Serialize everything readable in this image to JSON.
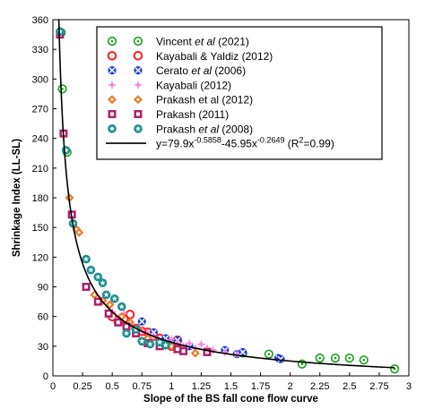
{
  "chart_data": {
    "type": "scatter",
    "xlabel": "Slope of the BS fall cone flow curve",
    "ylabel": "Shrinkage Index (LL-SL)",
    "xlim": [
      0,
      3
    ],
    "ylim": [
      0,
      360
    ],
    "xticks": [
      "0",
      "0.25",
      "0.5",
      "0.75",
      "1",
      "1.25",
      "1.5",
      "1.75",
      "2",
      "2.25",
      "2.5",
      "2.75",
      "3"
    ],
    "yticks": [
      "0",
      "30",
      "60",
      "90",
      "120",
      "150",
      "180",
      "210",
      "240",
      "270",
      "300",
      "330",
      "360"
    ],
    "grid": false,
    "legend_position": "top-right",
    "series": [
      {
        "name_parts": [
          {
            "t": "Vincent "
          },
          {
            "t": "et al",
            "i": true
          },
          {
            "t": " (2021)"
          }
        ],
        "marker": "circle-dot",
        "color": "#1aa01a",
        "points": [
          [
            0.07,
            347
          ],
          [
            0.08,
            290
          ],
          [
            0.12,
            226
          ],
          [
            1.6,
            23
          ],
          [
            1.82,
            22
          ],
          [
            2.1,
            12
          ],
          [
            2.25,
            18
          ],
          [
            2.38,
            18
          ],
          [
            2.5,
            18
          ],
          [
            2.62,
            16
          ],
          [
            2.88,
            7
          ]
        ]
      },
      {
        "name_parts": [
          {
            "t": "Kayabali & Yaldiz (2012)"
          }
        ],
        "marker": "circle-open",
        "color": "#ff2020",
        "points": [
          [
            0.5,
            60
          ],
          [
            0.55,
            55
          ],
          [
            0.6,
            58
          ],
          [
            0.65,
            62
          ],
          [
            0.7,
            48
          ],
          [
            0.75,
            45
          ],
          [
            0.8,
            44
          ],
          [
            0.85,
            40
          ],
          [
            0.9,
            38
          ],
          [
            0.95,
            33
          ],
          [
            1.0,
            30
          ],
          [
            1.05,
            36
          ]
        ]
      },
      {
        "name_parts": [
          {
            "t": "Cerato "
          },
          {
            "t": "et al",
            "i": true
          },
          {
            "t": " (2006)"
          }
        ],
        "marker": "circle-x",
        "color": "#2040d0",
        "points": [
          [
            0.75,
            55
          ],
          [
            0.85,
            44
          ],
          [
            0.95,
            38
          ],
          [
            1.0,
            33
          ],
          [
            1.05,
            36
          ],
          [
            1.15,
            30
          ],
          [
            1.45,
            26
          ],
          [
            1.55,
            22
          ],
          [
            1.6,
            24
          ],
          [
            1.9,
            18
          ],
          [
            1.92,
            17
          ]
        ]
      },
      {
        "name_parts": [
          {
            "t": "Kayabali (2012)"
          }
        ],
        "marker": "star4",
        "color": "#ff80e0",
        "points": [
          [
            0.4,
            78
          ],
          [
            0.5,
            65
          ],
          [
            0.55,
            58
          ],
          [
            0.6,
            63
          ],
          [
            0.65,
            52
          ],
          [
            0.7,
            48
          ],
          [
            0.75,
            46
          ],
          [
            0.8,
            43
          ],
          [
            0.85,
            40
          ],
          [
            0.9,
            36
          ],
          [
            0.95,
            35
          ],
          [
            1.0,
            37
          ],
          [
            1.05,
            33
          ],
          [
            1.1,
            30
          ],
          [
            1.15,
            33
          ],
          [
            1.2,
            28
          ],
          [
            1.25,
            32
          ],
          [
            1.3,
            28
          ],
          [
            1.35,
            26
          ],
          [
            1.45,
            24
          ],
          [
            1.55,
            22
          ]
        ]
      },
      {
        "name_parts": [
          {
            "t": "Prakash et al (2012)"
          }
        ],
        "marker": "diamond",
        "color": "#f07820",
        "points": [
          [
            0.14,
            180
          ],
          [
            0.2,
            148
          ],
          [
            0.22,
            145
          ],
          [
            0.35,
            82
          ],
          [
            0.42,
            76
          ],
          [
            0.48,
            72
          ],
          [
            0.58,
            60
          ],
          [
            0.65,
            54
          ],
          [
            0.72,
            47
          ],
          [
            0.8,
            38
          ],
          [
            0.9,
            33
          ],
          [
            1.0,
            30
          ],
          [
            1.1,
            26
          ],
          [
            1.2,
            23
          ]
        ]
      },
      {
        "name_parts": [
          {
            "t": "Prakash (2011)"
          }
        ],
        "marker": "square",
        "color": "#b0206a",
        "points": [
          [
            0.06,
            345
          ],
          [
            0.09,
            245
          ],
          [
            0.16,
            163
          ],
          [
            0.28,
            90
          ],
          [
            0.38,
            75
          ],
          [
            0.47,
            63
          ],
          [
            0.55,
            54
          ],
          [
            0.62,
            50
          ],
          [
            0.7,
            43
          ],
          [
            0.8,
            33
          ],
          [
            0.9,
            30
          ],
          [
            1.05,
            27
          ],
          [
            1.1,
            25
          ],
          [
            1.3,
            24
          ]
        ]
      },
      {
        "name_parts": [
          {
            "t": "Prakash "
          },
          {
            "t": "et al",
            "i": true
          },
          {
            "t": " (2008)"
          }
        ],
        "marker": "circle-star",
        "color": "#1a8e8e",
        "points": [
          [
            0.06,
            348
          ],
          [
            0.11,
            228
          ],
          [
            0.17,
            154
          ],
          [
            0.28,
            118
          ],
          [
            0.32,
            107
          ],
          [
            0.38,
            100
          ],
          [
            0.42,
            94
          ],
          [
            0.45,
            82
          ],
          [
            0.52,
            78
          ],
          [
            0.58,
            70
          ],
          [
            0.62,
            43
          ],
          [
            0.7,
            47
          ],
          [
            0.75,
            35
          ],
          [
            0.82,
            32
          ],
          [
            0.9,
            34
          ],
          [
            0.95,
            31
          ]
        ]
      }
    ],
    "fit": {
      "label_parts": [
        {
          "t": "y=79.9x"
        },
        {
          "t": "-0.5858",
          "sup": true
        },
        {
          "t": "-45.95x"
        },
        {
          "t": "-0.2649",
          "sup": true
        },
        {
          "t": " (R"
        },
        {
          "t": "2",
          "sup": true
        },
        {
          "t": "=0.99)"
        }
      ],
      "a": 79.9,
      "b": -0.5858,
      "c": 45.95,
      "d": -0.2649,
      "x_range": [
        0.045,
        2.88
      ],
      "color": "#000000"
    }
  }
}
